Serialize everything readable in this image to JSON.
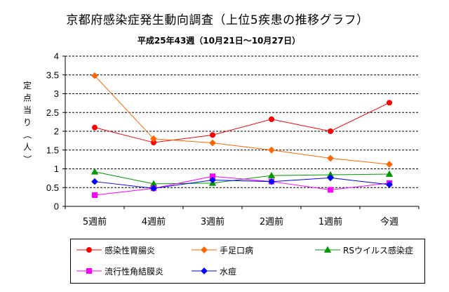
{
  "title": "京都府感染症発生動向調査（上位5疾患の推移グラフ）",
  "subtitle": "平成25年43週（10月21日～10月27日）",
  "chart_data": {
    "type": "line",
    "categories": [
      "5週前",
      "4週前",
      "3週前",
      "2週前",
      "1週前",
      "今週"
    ],
    "ylabel": "定点当り（人）",
    "ylim": [
      0,
      4
    ],
    "yticks": [
      "0",
      "0.5",
      "1",
      "1.5",
      "2",
      "2.5",
      "3",
      "3.5",
      "4"
    ],
    "grid": "horizontal dashed",
    "legend_position": "bottom",
    "series": [
      {
        "name": "感染性胃腸炎",
        "color": "#ff0000",
        "marker": "circle",
        "values": [
          2.1,
          1.7,
          1.9,
          2.32,
          2.0,
          2.76
        ]
      },
      {
        "name": "手足口病",
        "color": "#ff6600",
        "marker": "diamond",
        "values": [
          3.48,
          1.8,
          1.69,
          1.5,
          1.28,
          1.12
        ]
      },
      {
        "name": "RSウイルス感染症",
        "color": "#009900",
        "marker": "triangle",
        "values": [
          0.92,
          0.6,
          0.62,
          0.82,
          0.84,
          0.86
        ]
      },
      {
        "name": "流行性角結膜炎",
        "color": "#ff00ff",
        "marker": "square",
        "values": [
          0.3,
          0.48,
          0.8,
          0.66,
          0.44,
          0.62
        ]
      },
      {
        "name": "水痘",
        "color": "#0000ff",
        "marker": "diamond",
        "values": [
          0.66,
          0.48,
          0.7,
          0.66,
          0.76,
          0.58
        ]
      }
    ]
  }
}
